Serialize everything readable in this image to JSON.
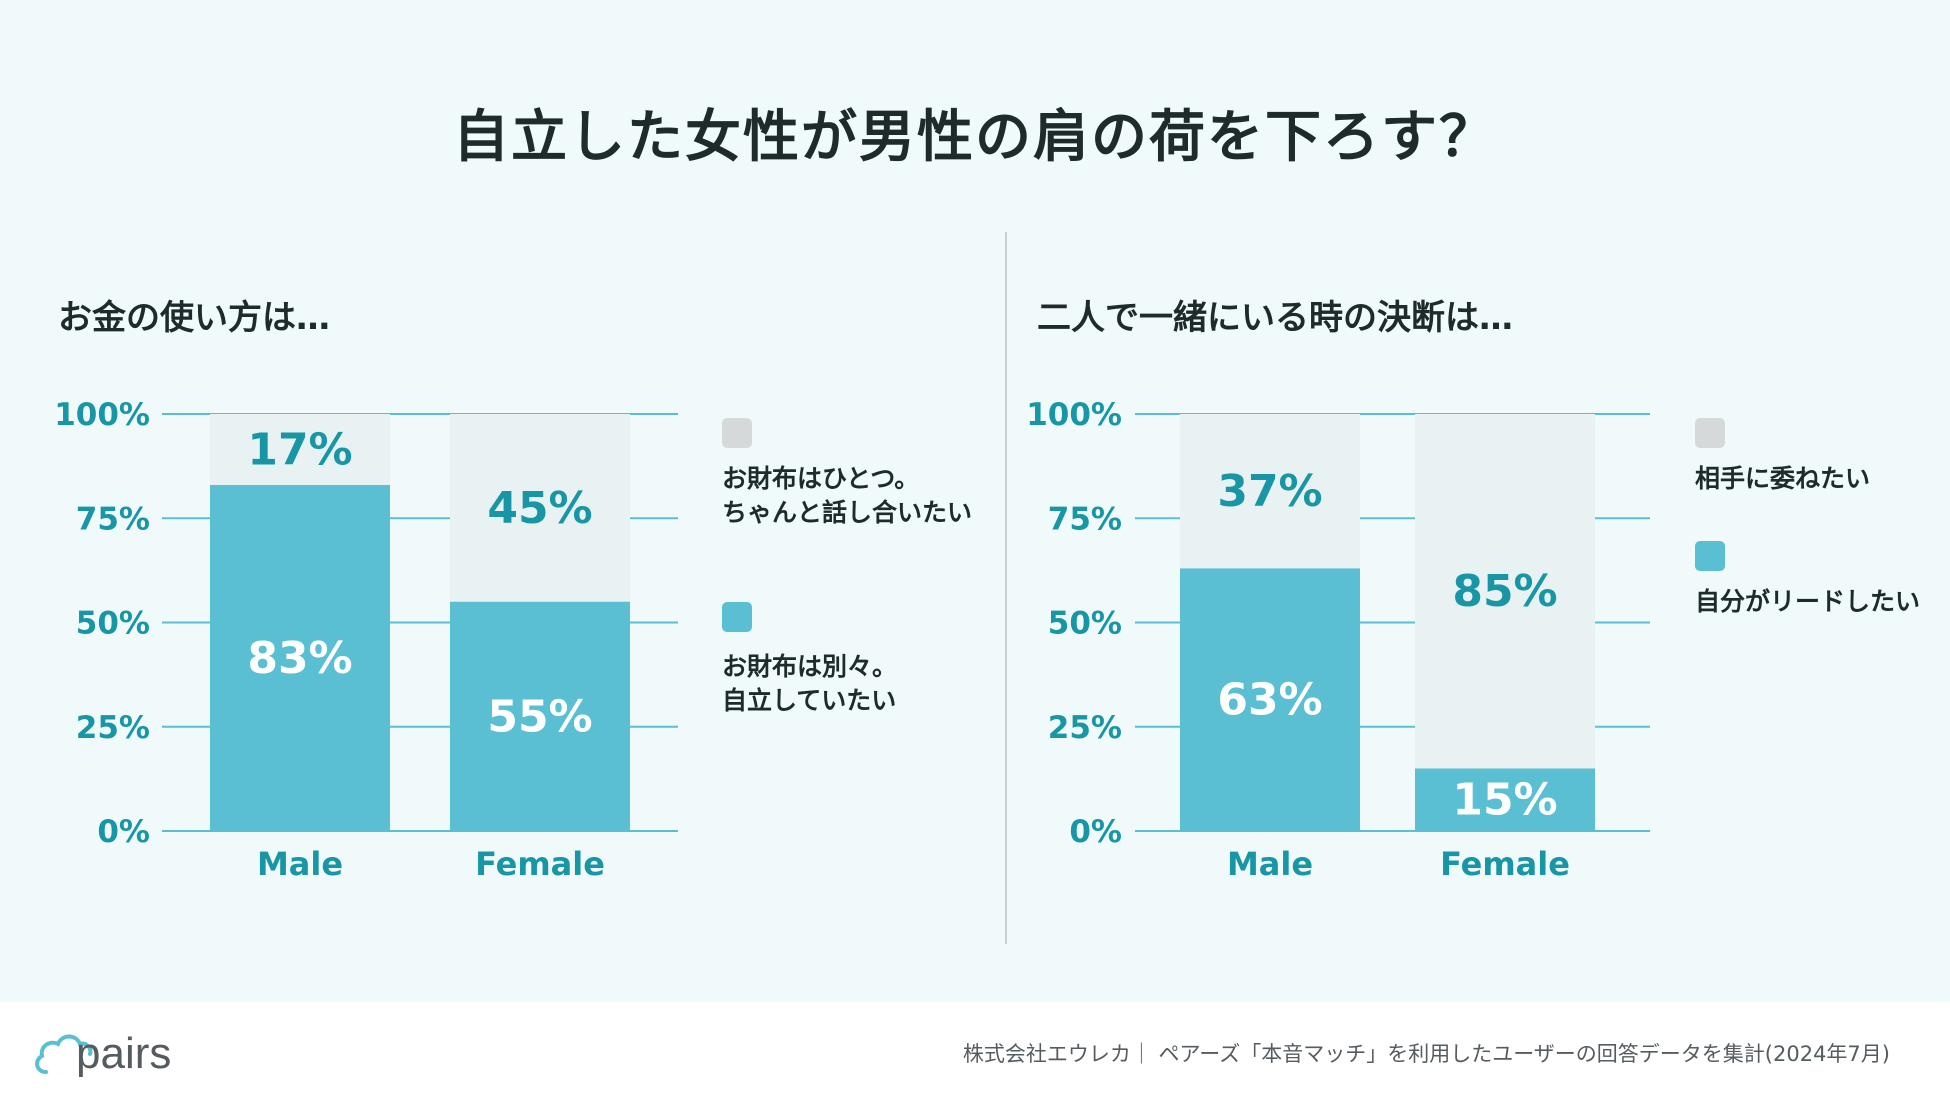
{
  "title": "自立した女性が男性の肩の荷を下ろす？",
  "colors": {
    "accent": "#1896a6",
    "bar_lead": "#5bbfd3",
    "bar_other": "#e9f2f2",
    "legend_other": "#d6d9da"
  },
  "footer": {
    "logo_text": "pairs",
    "source": "株式会社エウレカ｜ ペアーズ「本音マッチ」を利用したユーザーの回答データを集計(2024年7月)"
  },
  "chart_data": [
    {
      "type": "bar",
      "stacked": true,
      "title": "お金の使い方は…",
      "categories": [
        "Male",
        "Female"
      ],
      "ylim": [
        0,
        100
      ],
      "yticks": [
        "0%",
        "25%",
        "50%",
        "75%",
        "100%"
      ],
      "grid": true,
      "series": [
        {
          "name": "お財布は別々。自立していたい",
          "values": [
            83,
            55
          ],
          "labels": [
            "83%",
            "55%"
          ],
          "legend_lines": [
            "お財布は別々。",
            "自立していたい"
          ]
        },
        {
          "name": "お財布はひとつ。ちゃんと話し合いたい",
          "values": [
            17,
            45
          ],
          "labels": [
            "17%",
            "45%"
          ],
          "legend_lines": [
            "お財布はひとつ。",
            "ちゃんと話し合いたい"
          ]
        }
      ]
    },
    {
      "type": "bar",
      "stacked": true,
      "title": "二人で一緒にいる時の決断は…",
      "categories": [
        "Male",
        "Female"
      ],
      "ylim": [
        0,
        100
      ],
      "yticks": [
        "0%",
        "25%",
        "50%",
        "75%",
        "100%"
      ],
      "grid": true,
      "series": [
        {
          "name": "自分がリードしたい",
          "values": [
            63,
            15
          ],
          "labels": [
            "63%",
            "15%"
          ],
          "legend_lines": [
            "自分がリードしたい"
          ]
        },
        {
          "name": "相手に委ねたい",
          "values": [
            37,
            85
          ],
          "labels": [
            "37%",
            "85%"
          ],
          "legend_lines": [
            "相手に委ねたい"
          ]
        }
      ]
    }
  ]
}
